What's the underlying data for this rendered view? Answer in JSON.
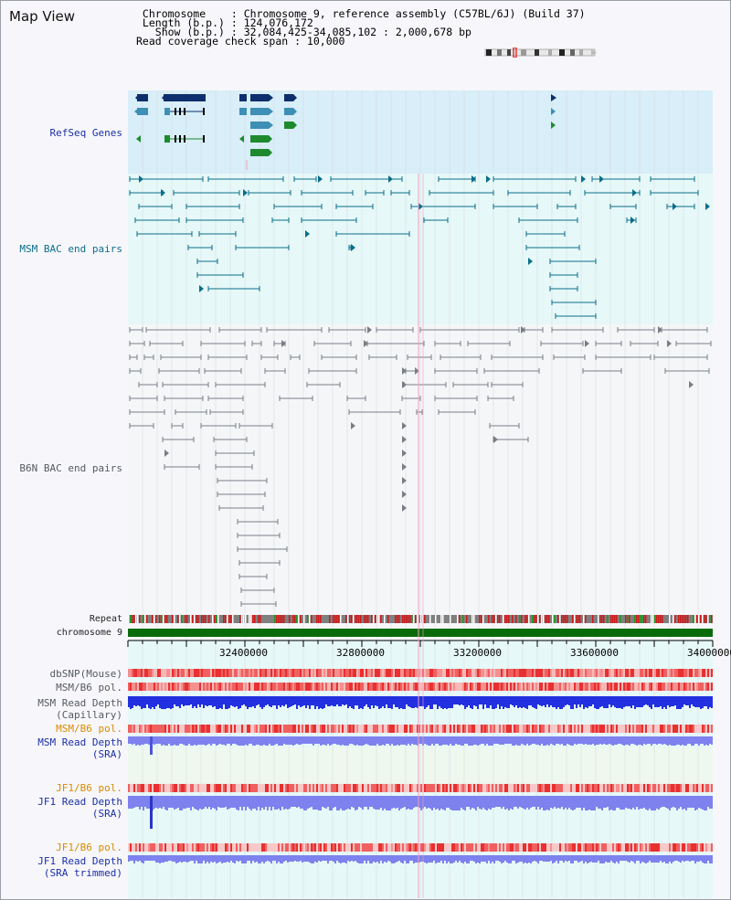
{
  "header": {
    "title": "Map View",
    "info_lines": [
      " Chromosome    : Chromosome 9, reference assembly (C57BL/6J) (Build 37)",
      " Length (b.p.) : 124,076,172",
      "   Show (b.p.) : 32,084,425-34,085,102 : 2,000,678 bp",
      "Read coverage check span : 10,000"
    ]
  },
  "tracks": {
    "refseq": "RefSeq Genes",
    "msm_bac": "MSM BAC end pairs",
    "b6n_bac": "B6N BAC end pairs",
    "repeat": "Repeat",
    "chromosome": "chromosome 9",
    "dbsnp": "dbSNP(Mouse)",
    "msm_b6_pol": "MSM/B6 pol.",
    "msm_depth_cap_1": "MSM Read Depth",
    "msm_depth_cap_2": "(Capillary)",
    "msm_b6_pol2": "MSM/B6 pol.",
    "msm_depth_sra_1": "MSM Read Depth",
    "msm_depth_sra_2": "(SRA)",
    "jf1_b6_pol": "JF1/B6 pol.",
    "jf1_depth_sra_1": "JF1 Read Depth",
    "jf1_depth_sra_2": "(SRA)",
    "jf1_b6_pol2": "JF1/B6 pol.",
    "jf1_depth_trim_1": "JF1 Read Depth",
    "jf1_depth_trim_2": "(SRA trimmed)"
  },
  "axis": {
    "ticks": [
      "32400000",
      "32800000",
      "33200000",
      "33600000",
      "34000000"
    ]
  },
  "colors": {
    "refseq_bg": "#d8eef8",
    "bac_bg": "#e6f8f8",
    "gene_dark": "#0d2f6e",
    "gene_mid": "#3d8fb5",
    "gene_green": "#1e8a2e",
    "msm_pair": "#0a6e8a",
    "b6n_pair": "#7a7e84",
    "chrom_green": "#0a6b0a",
    "snp_red": "#e63030",
    "depth_blue": "#2230e0",
    "depth_light": "#7e82ee",
    "grid_line": "#d9dce0",
    "highlight_line": "#f0a0c0"
  }
}
